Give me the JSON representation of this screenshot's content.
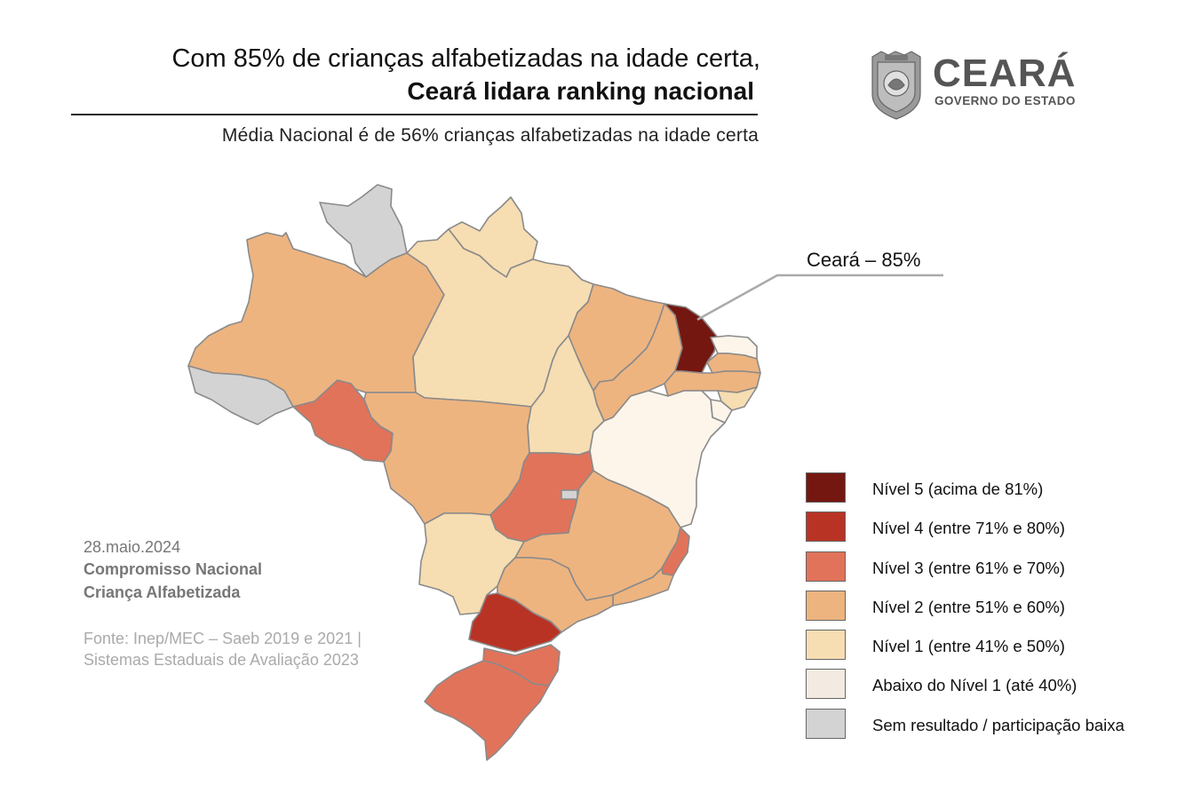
{
  "header": {
    "title_line1": "Com 85% de crianças alfabetizadas na idade certa,",
    "title_line2": "Ceará lidara ranking nacional",
    "subtitle": "Média Nacional é de 56% crianças alfabetizadas na idade certa"
  },
  "logo": {
    "name": "CEARÁ",
    "subtitle": "GOVERNO DO ESTADO",
    "icon": "coat-of-arms-icon"
  },
  "callout": {
    "label": "Ceará – 85%"
  },
  "colors": {
    "nivel5": "#751711",
    "nivel4": "#b93325",
    "nivel3": "#e1735a",
    "nivel2": "#edb480",
    "nivel1": "#f6ddb2",
    "abaixo": "#fdf5ea",
    "sem_resultado": "#d3d3d3",
    "border": "#8a8a8a"
  },
  "legend": [
    {
      "label": "Nível 5 (acima de 81%)",
      "color": "#751711"
    },
    {
      "label": "Nível 4 (entre 71% e 80%)",
      "color": "#b93325"
    },
    {
      "label": "Nível 3 (entre 61% e 70%)",
      "color": "#e1735a"
    },
    {
      "label": "Nível 2 (entre 51% e 60%)",
      "color": "#edb480"
    },
    {
      "label": "Nível 1 (entre 41% e 50%)",
      "color": "#f6ddb2"
    },
    {
      "label": "Abaixo do Nível 1 (até 40%)",
      "color": "#f3ebe1"
    },
    {
      "label": "Sem resultado / participação baixa",
      "color": "#d3d3d3"
    }
  ],
  "side": {
    "date": "28.maio.2024",
    "program_line1": "Compromisso Nacional",
    "program_line2": "Criança Alfabetizada",
    "source_line1": "Fonte: Inep/MEC – Saeb 2019 e 2021 |",
    "source_line2": "Sistemas Estaduais de Avaliação 2023"
  }
}
